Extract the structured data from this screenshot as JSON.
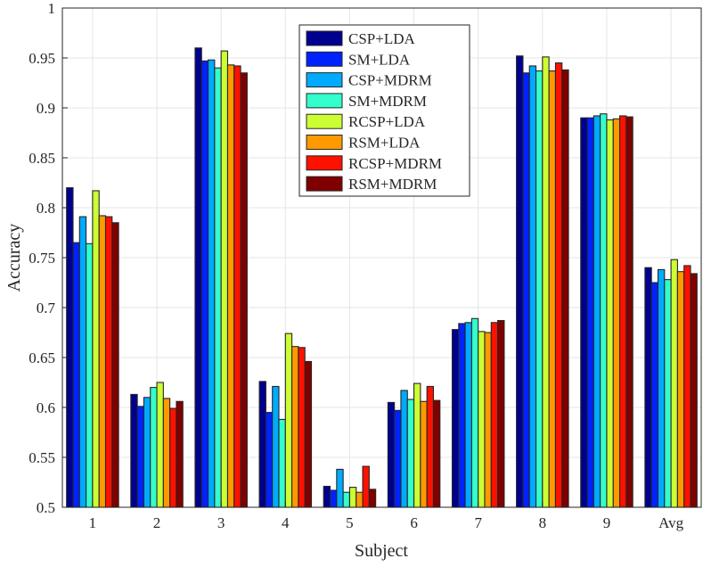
{
  "chart_data": {
    "type": "bar",
    "title": "",
    "xlabel": "Subject",
    "ylabel": "Accuracy",
    "ylim": [
      0.5,
      1
    ],
    "yticks": [
      "0.5",
      "0.55",
      "0.6",
      "0.65",
      "0.7",
      "0.75",
      "0.8",
      "0.85",
      "0.9",
      "0.95",
      "1"
    ],
    "grid": true,
    "legend_position": "top-center",
    "categories": [
      "1",
      "2",
      "3",
      "4",
      "5",
      "6",
      "7",
      "8",
      "9",
      "Avg"
    ],
    "series": [
      {
        "name": "CSP+LDA",
        "color": "#00008f",
        "values": [
          0.82,
          0.613,
          0.96,
          0.626,
          0.521,
          0.605,
          0.678,
          0.952,
          0.89,
          0.74
        ]
      },
      {
        "name": "SM+LDA",
        "color": "#0022ff",
        "values": [
          0.765,
          0.601,
          0.947,
          0.595,
          0.517,
          0.597,
          0.684,
          0.935,
          0.89,
          0.725
        ]
      },
      {
        "name": "CSP+MDRM",
        "color": "#00aaff",
        "values": [
          0.791,
          0.61,
          0.948,
          0.621,
          0.538,
          0.617,
          0.685,
          0.942,
          0.892,
          0.738
        ]
      },
      {
        "name": "SM+MDRM",
        "color": "#33ffcc",
        "values": [
          0.764,
          0.62,
          0.94,
          0.588,
          0.515,
          0.608,
          0.689,
          0.937,
          0.894,
          0.728
        ]
      },
      {
        "name": "RCSP+LDA",
        "color": "#ccff33",
        "values": [
          0.817,
          0.625,
          0.957,
          0.674,
          0.52,
          0.624,
          0.676,
          0.951,
          0.888,
          0.748
        ]
      },
      {
        "name": "RSM+LDA",
        "color": "#ff9900",
        "values": [
          0.792,
          0.609,
          0.943,
          0.661,
          0.515,
          0.606,
          0.675,
          0.937,
          0.889,
          0.736
        ]
      },
      {
        "name": "RCSP+MDRM",
        "color": "#ff1100",
        "values": [
          0.791,
          0.599,
          0.942,
          0.66,
          0.541,
          0.621,
          0.685,
          0.945,
          0.892,
          0.742
        ]
      },
      {
        "name": "RSM+MDRM",
        "color": "#800000",
        "values": [
          0.785,
          0.606,
          0.935,
          0.646,
          0.518,
          0.607,
          0.687,
          0.938,
          0.891,
          0.734
        ]
      }
    ]
  }
}
